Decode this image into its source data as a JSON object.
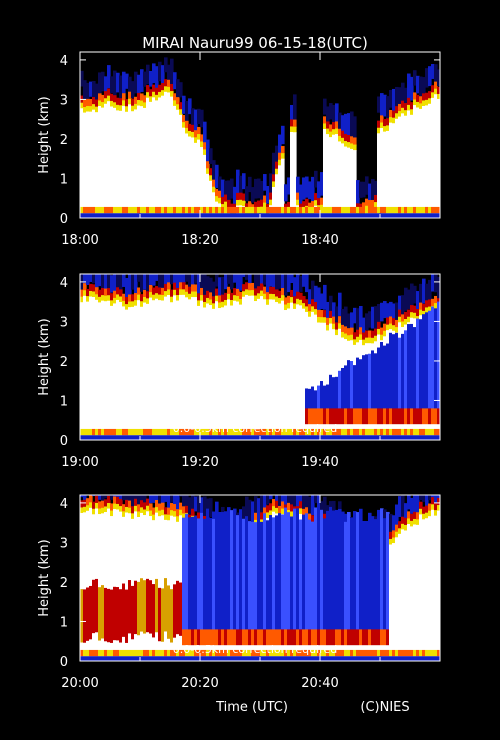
{
  "chart_data": {
    "type": "heatmap",
    "title": "MIRAI Nauru99 06-15-18(UTC)",
    "xlabel": "Time (UTC)",
    "credit": "(C)NIES",
    "colors": {
      "background": "#000000",
      "axes": "#ffffff"
    },
    "colorscale": [
      "#000000",
      "#0a0a55",
      "#1020c8",
      "#3a50ff",
      "#c00000",
      "#ff5a00",
      "#f0e000",
      "#ffffff"
    ],
    "panels": [
      {
        "start": "18:00",
        "xticks": [
          "18:00",
          "18:20",
          "18:40"
        ],
        "ylabel": "Height (km)",
        "yticks": [
          "0",
          "1",
          "2",
          "3",
          "4"
        ],
        "ylim": [
          0,
          4.2
        ],
        "annotation": "",
        "cloud_top_km": [
          3.0,
          3.1,
          3.2,
          3.1,
          3.2,
          3.3,
          3.5,
          2.5,
          2.2,
          0.8,
          0.5,
          0.4,
          0.5,
          1.2,
          2.4,
          2.6,
          2.7,
          2.4,
          2.0,
          2.3,
          2.5,
          2.7,
          3.0,
          3.2,
          3.4
        ],
        "dark_gaps": [
          [
            18.41,
            18.46
          ],
          [
            18.5,
            18.53
          ],
          [
            18.56,
            18.58
          ],
          [
            18.6,
            18.67
          ],
          [
            18.76,
            18.82
          ]
        ]
      },
      {
        "start": "19:00",
        "xticks": [
          "19:00",
          "19:20",
          "19:40"
        ],
        "ylabel": "Height (km)",
        "yticks": [
          "0",
          "1",
          "2",
          "3",
          "4"
        ],
        "ylim": [
          0,
          4.2
        ],
        "annotation": "0.0-0.5km correction required",
        "cloud_top_km": [
          3.9,
          3.9,
          3.8,
          3.7,
          3.8,
          3.9,
          3.9,
          3.9,
          3.8,
          3.7,
          3.8,
          3.9,
          3.9,
          3.8,
          3.7,
          3.6,
          3.3,
          3.1,
          2.9,
          2.7,
          2.9,
          3.1,
          3.3,
          3.5,
          3.7
        ],
        "blue_echo_from": 19.62
      },
      {
        "start": "20:00",
        "xticks": [
          "20:00",
          "20:20",
          "20:40"
        ],
        "ylabel": "Height (km)",
        "yticks": [
          "0",
          "1",
          "2",
          "3",
          "4"
        ],
        "ylim": [
          0,
          4.2
        ],
        "annotation": "0.0-0.5km correction required",
        "cloud_top_km": [
          4.1,
          4.1,
          4.1,
          4.0,
          4.0,
          4.0,
          3.9,
          3.9,
          3.6,
          3.4,
          3.2,
          3.4,
          3.8,
          4.0,
          4.0,
          3.9,
          3.7,
          3.5,
          3.1,
          2.9,
          3.1,
          3.4,
          3.7,
          4.0,
          4.1
        ],
        "blue_echo_span": [
          20.28,
          20.85
        ]
      }
    ]
  }
}
